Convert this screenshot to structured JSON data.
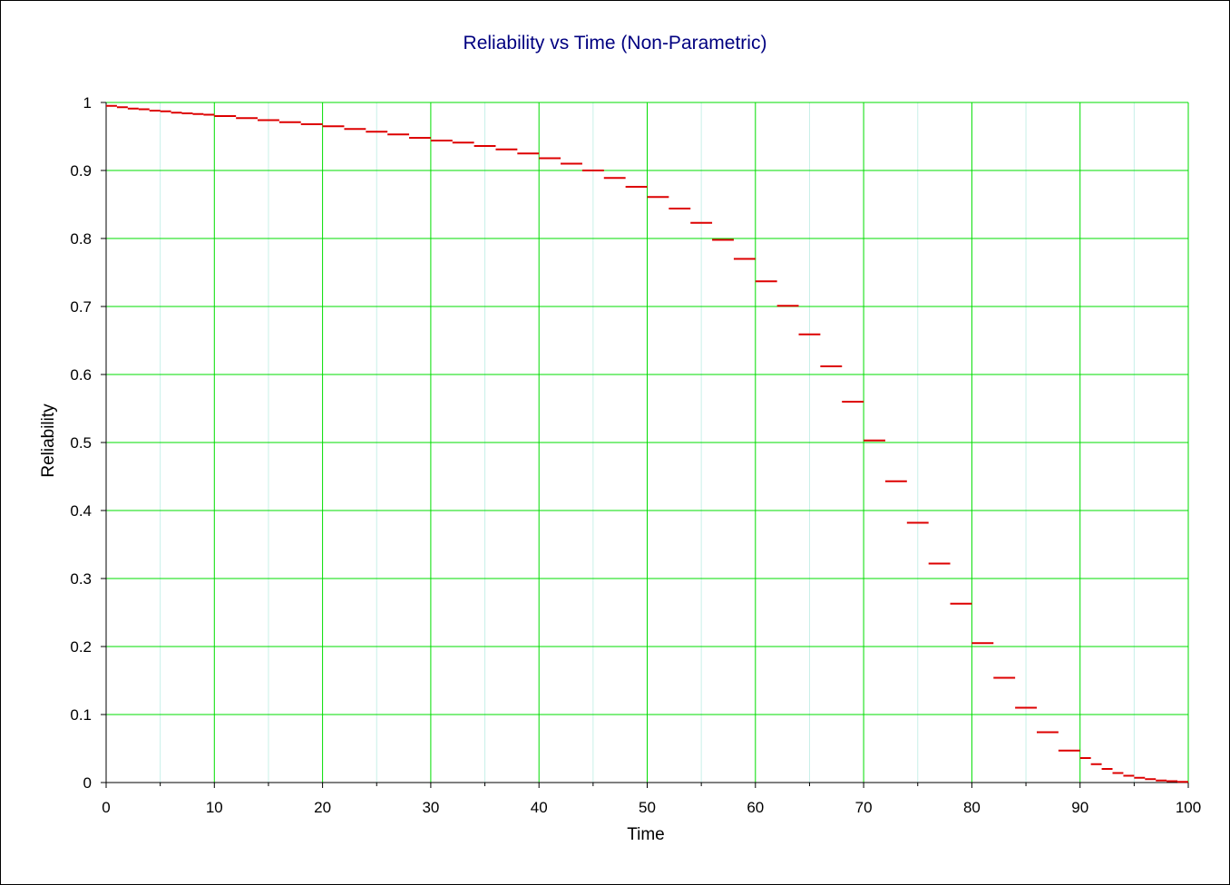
{
  "colors": {
    "title": "#000080",
    "grid_major": "#00dd00",
    "grid_minor": "#c8f0e8",
    "series": "#dd0000",
    "series_alt": "#800080"
  },
  "chart_data": {
    "type": "line",
    "title": "Reliability vs Time (Non-Parametric)",
    "xlabel": "Time",
    "ylabel": "Reliability",
    "xlim": [
      0,
      100
    ],
    "ylim": [
      0,
      1
    ],
    "x_ticks": [
      "0",
      "10",
      "20",
      "30",
      "40",
      "50",
      "60",
      "70",
      "80",
      "90",
      "100"
    ],
    "y_ticks": [
      "0",
      "0.1",
      "0.2",
      "0.3",
      "0.4",
      "0.5",
      "0.6",
      "0.7",
      "0.8",
      "0.9",
      "1"
    ],
    "grid": true,
    "legend": "none",
    "series": [
      {
        "style": "step",
        "points": [
          [
            0,
            0.995
          ],
          [
            1,
            0.993
          ],
          [
            2,
            0.991
          ],
          [
            3,
            0.99
          ],
          [
            4,
            0.988
          ],
          [
            5,
            0.987
          ],
          [
            6,
            0.985
          ],
          [
            7,
            0.984
          ],
          [
            8,
            0.983
          ],
          [
            9,
            0.982
          ],
          [
            10,
            0.98
          ],
          [
            12,
            0.977
          ],
          [
            14,
            0.974
          ],
          [
            16,
            0.971
          ],
          [
            18,
            0.968
          ],
          [
            20,
            0.965
          ],
          [
            22,
            0.961
          ],
          [
            24,
            0.957
          ],
          [
            26,
            0.953
          ],
          [
            28,
            0.948
          ],
          [
            30,
            0.944
          ],
          [
            32,
            0.941
          ],
          [
            34,
            0.936
          ],
          [
            36,
            0.931
          ],
          [
            38,
            0.925
          ],
          [
            40,
            0.918
          ],
          [
            42,
            0.91
          ],
          [
            44,
            0.9
          ],
          [
            46,
            0.889
          ],
          [
            48,
            0.876
          ],
          [
            50,
            0.861
          ],
          [
            52,
            0.844
          ],
          [
            54,
            0.823
          ],
          [
            56,
            0.798
          ],
          [
            58,
            0.77
          ],
          [
            60,
            0.737
          ],
          [
            62,
            0.701
          ],
          [
            64,
            0.659
          ],
          [
            66,
            0.612
          ],
          [
            68,
            0.56
          ],
          [
            70,
            0.503
          ],
          [
            72,
            0.443
          ],
          [
            74,
            0.382
          ],
          [
            76,
            0.322
          ],
          [
            78,
            0.263
          ],
          [
            80,
            0.205
          ],
          [
            82,
            0.154
          ],
          [
            84,
            0.11
          ],
          [
            86,
            0.074
          ],
          [
            88,
            0.047
          ],
          [
            90,
            0.036
          ],
          [
            91,
            0.027
          ],
          [
            92,
            0.02
          ],
          [
            93,
            0.014
          ],
          [
            94,
            0.01
          ],
          [
            95,
            0.007
          ],
          [
            96,
            0.005
          ],
          [
            97,
            0.003
          ],
          [
            98,
            0.002
          ],
          [
            99,
            0.001
          ]
        ],
        "end": 99
      }
    ]
  }
}
